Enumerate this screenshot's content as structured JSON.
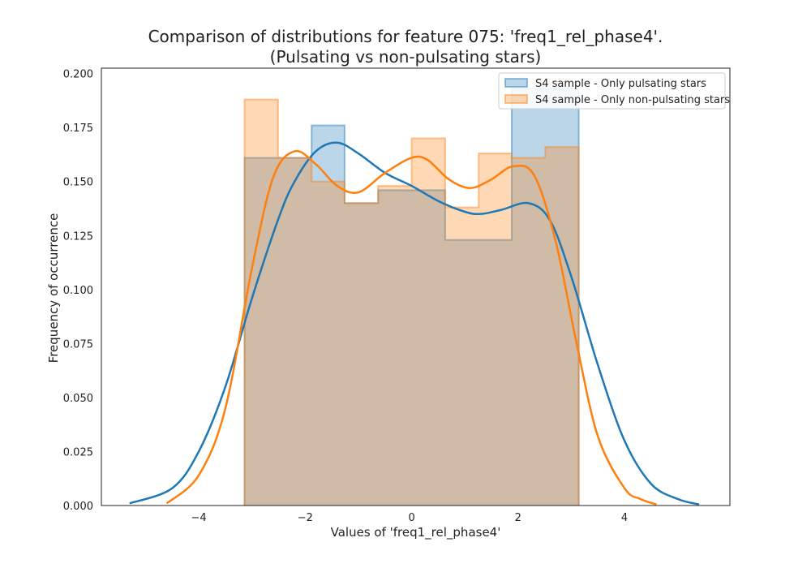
{
  "chart_data": {
    "type": "histogram-kde",
    "title": "Comparison of distributions for feature 075: 'freq1_rel_phase4'.",
    "subtitle": "(Pulsating vs non-pulsating stars)",
    "xlabel": "Values of 'freq1_rel_phase4'",
    "ylabel": "Frequency of occurrence",
    "xlim": [
      -5.83,
      5.98
    ],
    "ylim": [
      0,
      0.2025
    ],
    "x_ticks": [
      -4,
      -2,
      0,
      2,
      4
    ],
    "x_tick_labels": [
      "−4",
      "−2",
      "0",
      "2",
      "4"
    ],
    "y_ticks": [
      0,
      0.025,
      0.05,
      0.075,
      0.1,
      0.125,
      0.15,
      0.175,
      0.2
    ],
    "y_tick_labels": [
      "0.000",
      "0.025",
      "0.050",
      "0.075",
      "0.100",
      "0.125",
      "0.150",
      "0.175",
      "0.200"
    ],
    "grid": false,
    "legend_position": "top-right",
    "bin_edges": [
      -3.14,
      -2.51,
      -1.88,
      -1.26,
      -0.63,
      0.0,
      0.63,
      1.26,
      1.88,
      2.51,
      3.14
    ],
    "series": [
      {
        "name": "S4 sample - Only pulsating stars",
        "color": "#1f77b4",
        "hist_values": [
          0.161,
          0.161,
          0.176,
          0.14,
          0.146,
          0.146,
          0.123,
          0.123,
          0.193,
          0.193
        ],
        "kde_x": [
          -5.3,
          -4.5,
          -4.0,
          -3.5,
          -3.0,
          -2.5,
          -2.2,
          -1.8,
          -1.4,
          -1.0,
          -0.5,
          0.0,
          0.5,
          1.0,
          1.3,
          1.7,
          2.2,
          2.6,
          3.0,
          3.5,
          4.0,
          4.5,
          5.0,
          5.4
        ],
        "kde_y": [
          0.001,
          0.008,
          0.025,
          0.055,
          0.096,
          0.133,
          0.15,
          0.164,
          0.168,
          0.163,
          0.154,
          0.148,
          0.141,
          0.136,
          0.135,
          0.137,
          0.14,
          0.132,
          0.106,
          0.065,
          0.03,
          0.01,
          0.003,
          0.0005
        ]
      },
      {
        "name": "S4 sample - Only non-pulsating stars",
        "color": "#ff7f0e",
        "hist_values": [
          0.188,
          0.161,
          0.15,
          0.14,
          0.148,
          0.17,
          0.138,
          0.163,
          0.161,
          0.166
        ],
        "kde_x": [
          -4.6,
          -4.0,
          -3.5,
          -3.0,
          -2.6,
          -2.2,
          -1.8,
          -1.4,
          -1.0,
          -0.5,
          0.0,
          0.3,
          0.7,
          1.1,
          1.5,
          1.9,
          2.3,
          2.7,
          3.1,
          3.5,
          4.0,
          4.3,
          4.6
        ],
        "kde_y": [
          0.001,
          0.014,
          0.045,
          0.11,
          0.152,
          0.164,
          0.158,
          0.148,
          0.145,
          0.154,
          0.161,
          0.16,
          0.151,
          0.147,
          0.151,
          0.157,
          0.153,
          0.123,
          0.075,
          0.032,
          0.008,
          0.003,
          0.0005
        ]
      }
    ]
  }
}
